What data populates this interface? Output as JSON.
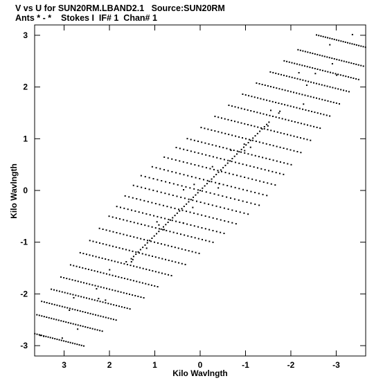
{
  "chart_data": {
    "type": "scatter",
    "title_line1": "V vs U for SUN20RM.LBAND2.1   Source:SUN20RM",
    "title_line2": "Ants * - *    Stokes I  IF# 1  Chan# 1",
    "xlabel": "Kilo Wavlngth",
    "ylabel": "Kilo Wavlngth",
    "x_reversed": true,
    "xlim": [
      3.65,
      -3.65
    ],
    "ylim": [
      -3.2,
      3.2
    ],
    "xticks": [
      3,
      2,
      1,
      0,
      -1,
      -2,
      -3
    ],
    "xtick_labels": [
      "3",
      "2",
      "1",
      "0",
      "-1",
      "-2",
      "-3"
    ],
    "yticks": [
      -3,
      -2,
      -1,
      0,
      1,
      2,
      3
    ],
    "ytick_labels": [
      "-3",
      "-2",
      "-1",
      "0",
      "1",
      "2",
      "3"
    ],
    "grid": false,
    "marker_color": "#000000",
    "uv_tracks": {
      "description_free": true,
      "center_line": {
        "from": [
          3.45,
          -3.0
        ],
        "to": [
          -3.45,
          3.0
        ]
      },
      "track_slope_dv_du": -0.22,
      "offsets": [
        -1.9,
        -1.7,
        -1.55,
        -1.4,
        -1.25,
        -1.1,
        -0.95,
        -0.8,
        -0.65,
        -0.5,
        -0.38,
        -0.25,
        -0.12,
        0.0,
        0.12,
        0.25,
        0.38,
        0.5,
        0.65,
        0.8,
        0.95,
        1.1,
        1.25,
        1.4,
        1.55,
        1.7,
        1.9
      ],
      "half_length": 1.3,
      "points_per_track": 30
    }
  }
}
